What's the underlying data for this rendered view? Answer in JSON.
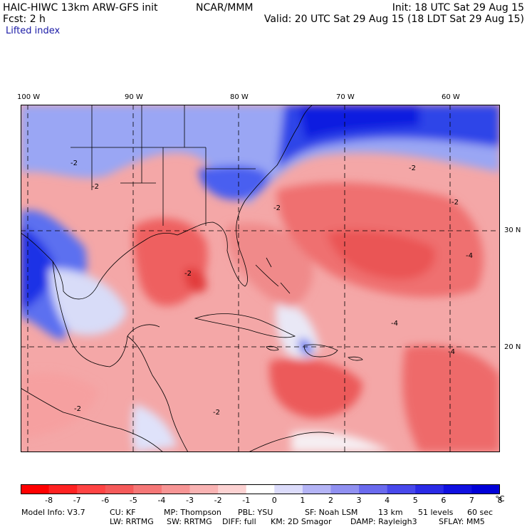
{
  "header": {
    "model": "HAIC-HIWC 13km ARW-GFS init",
    "org": "NCAR/MMM",
    "fcst": "Fcst:    2 h",
    "init": "Init: 18 UTC Sat 29 Aug 15",
    "valid": "Valid: 20 UTC Sat 29 Aug 15 (18 LDT Sat 29 Aug 15)",
    "field": "Lifted index"
  },
  "map": {
    "lon_labels": [
      "100 W",
      "90 W",
      "80 W",
      "70 W",
      "60 W"
    ],
    "lat_labels": [
      "30 N",
      "20 N"
    ],
    "contour_labels": [
      "-2",
      "-2",
      "-2",
      "-2",
      "-4",
      "-4",
      "-4",
      "-2",
      "-2",
      "-2",
      "-2"
    ],
    "colors": {
      "stable_deep": "#0a1fe0",
      "stable_mid": "#5b6ff0",
      "stable_light": "#c9d0f8",
      "neutral": "#f3e6ee",
      "unstable_light": "#f6b9b9",
      "unstable_mid": "#f07a7a",
      "unstable_deep": "#eb4848"
    }
  },
  "colorbar": {
    "colors": [
      "#ff0000",
      "#ff2222",
      "#ff4444",
      "#f55a5a",
      "#f57777",
      "#f79595",
      "#f9b3b3",
      "#fcd2d2",
      "#ffffff",
      "#dcdcfb",
      "#b4b4f6",
      "#9090f1",
      "#6a6aee",
      "#4848eb",
      "#2a2ae6",
      "#1010e0",
      "#0000d8"
    ],
    "labels": [
      "-8",
      "-7",
      "-6",
      "-5",
      "-4",
      "-3",
      "-2",
      "-1",
      "0",
      "1",
      "2",
      "3",
      "4",
      "5",
      "6",
      "7",
      "8"
    ],
    "unit": "°C"
  },
  "info": {
    "model_info": "Model Info: V3.7",
    "cu": "CU: KF",
    "mp": "MP: Thompson",
    "pbl": "PBL: YSU",
    "sf": "SF: Noah LSM",
    "res": "13 km",
    "levels": "51 levels",
    "dt": "60 sec",
    "lw": "LW: RRTMG",
    "sw": "SW: RRTMG",
    "diff": "DIFF: full",
    "km": "KM: 2D Smagor",
    "damp": "DAMP: Rayleigh3",
    "sflay": "SFLAY: MM5"
  }
}
